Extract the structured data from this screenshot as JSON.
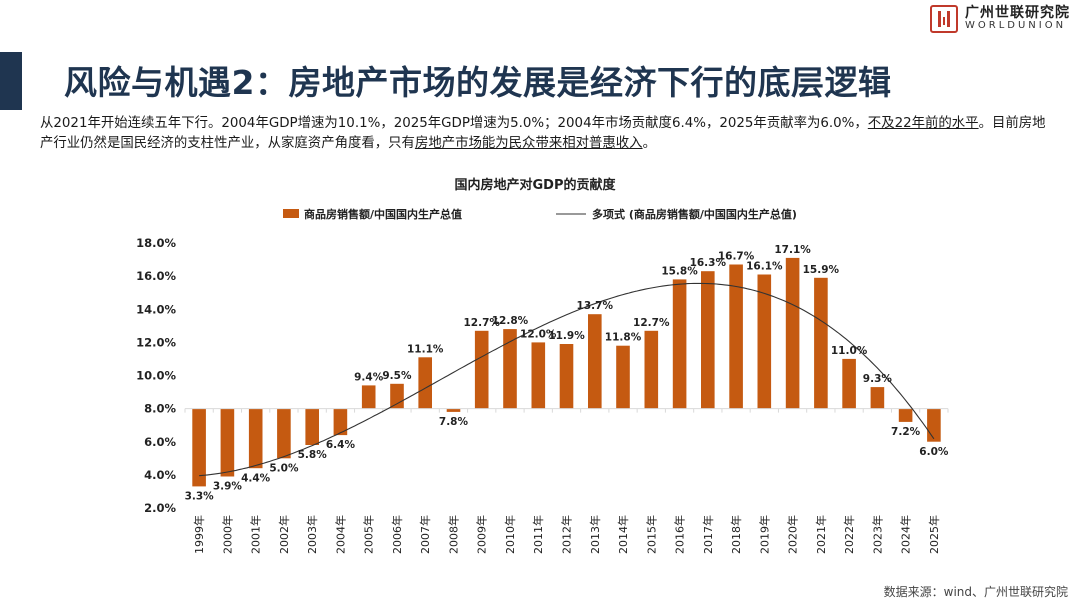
{
  "header": {
    "title": "风险与机遇2：房地产市场的发展是经济下行的底层逻辑",
    "logo_cn": "广州世联研究院",
    "logo_en": "WORLDUNION"
  },
  "intro": {
    "part1": "从2021年开始连续五年下行。2004年GDP增速为10.1%，2025年GDP增速为5.0%；2004年市场贡献度6.4%，2025年贡献率为6.0%，",
    "underline1": "不及22年前的水平",
    "part2": "。目前房地产行业仍然是国民经济的支柱性产业，从家庭资产角度看，只有",
    "underline2": "房地产市场能为民众带来相对普惠收入",
    "part3": "。"
  },
  "footer": {
    "source": "数据来源：wind、广州世联研究院"
  },
  "colors": {
    "bar": "#c55a11",
    "title": "#1f3550",
    "trend": "#333333",
    "axis": "#d9d9d9"
  },
  "chart_data": {
    "type": "bar",
    "title": "国内房地产对GDP的贡献度",
    "categories": [
      "1999年",
      "2000年",
      "2001年",
      "2002年",
      "2003年",
      "2004年",
      "2005年",
      "2006年",
      "2007年",
      "2008年",
      "2009年",
      "2010年",
      "2011年",
      "2012年",
      "2013年",
      "2014年",
      "2015年",
      "2016年",
      "2017年",
      "2018年",
      "2019年",
      "2020年",
      "2021年",
      "2022年",
      "2023年",
      "2024年",
      "2025年"
    ],
    "values": [
      3.3,
      3.9,
      4.4,
      5.0,
      5.8,
      6.4,
      9.4,
      9.5,
      11.1,
      7.8,
      12.7,
      12.8,
      12.0,
      11.9,
      13.7,
      11.8,
      12.7,
      15.8,
      16.3,
      16.7,
      16.1,
      17.1,
      15.9,
      11.0,
      9.3,
      7.2,
      6.0
    ],
    "labels": [
      "3.3%",
      "3.9%",
      "4.4%",
      "5.0%",
      "5.8%",
      "6.4%",
      "9.4%",
      "9.5%",
      "11.1%",
      "7.8%",
      "12.7%",
      "12.8%",
      "12.0%",
      "11.9%",
      "13.7%",
      "11.8%",
      "12.7%",
      "15.8%",
      "16.3%",
      "16.7%",
      "16.1%",
      "17.1%",
      "15.9%",
      "11.0%",
      "9.3%",
      "7.2%",
      "6.0%"
    ],
    "baseline": 8.0,
    "ylim": [
      2.0,
      18.0
    ],
    "yticks": [
      "2.0%",
      "4.0%",
      "6.0%",
      "8.0%",
      "10.0%",
      "12.0%",
      "14.0%",
      "16.0%",
      "18.0%"
    ],
    "legend": {
      "bar": "商品房销售额/中国国内生产总值",
      "trend": "多项式 (商品房销售额/中国国内生产总值)",
      "position": "top"
    },
    "trendline": "polynomial"
  }
}
